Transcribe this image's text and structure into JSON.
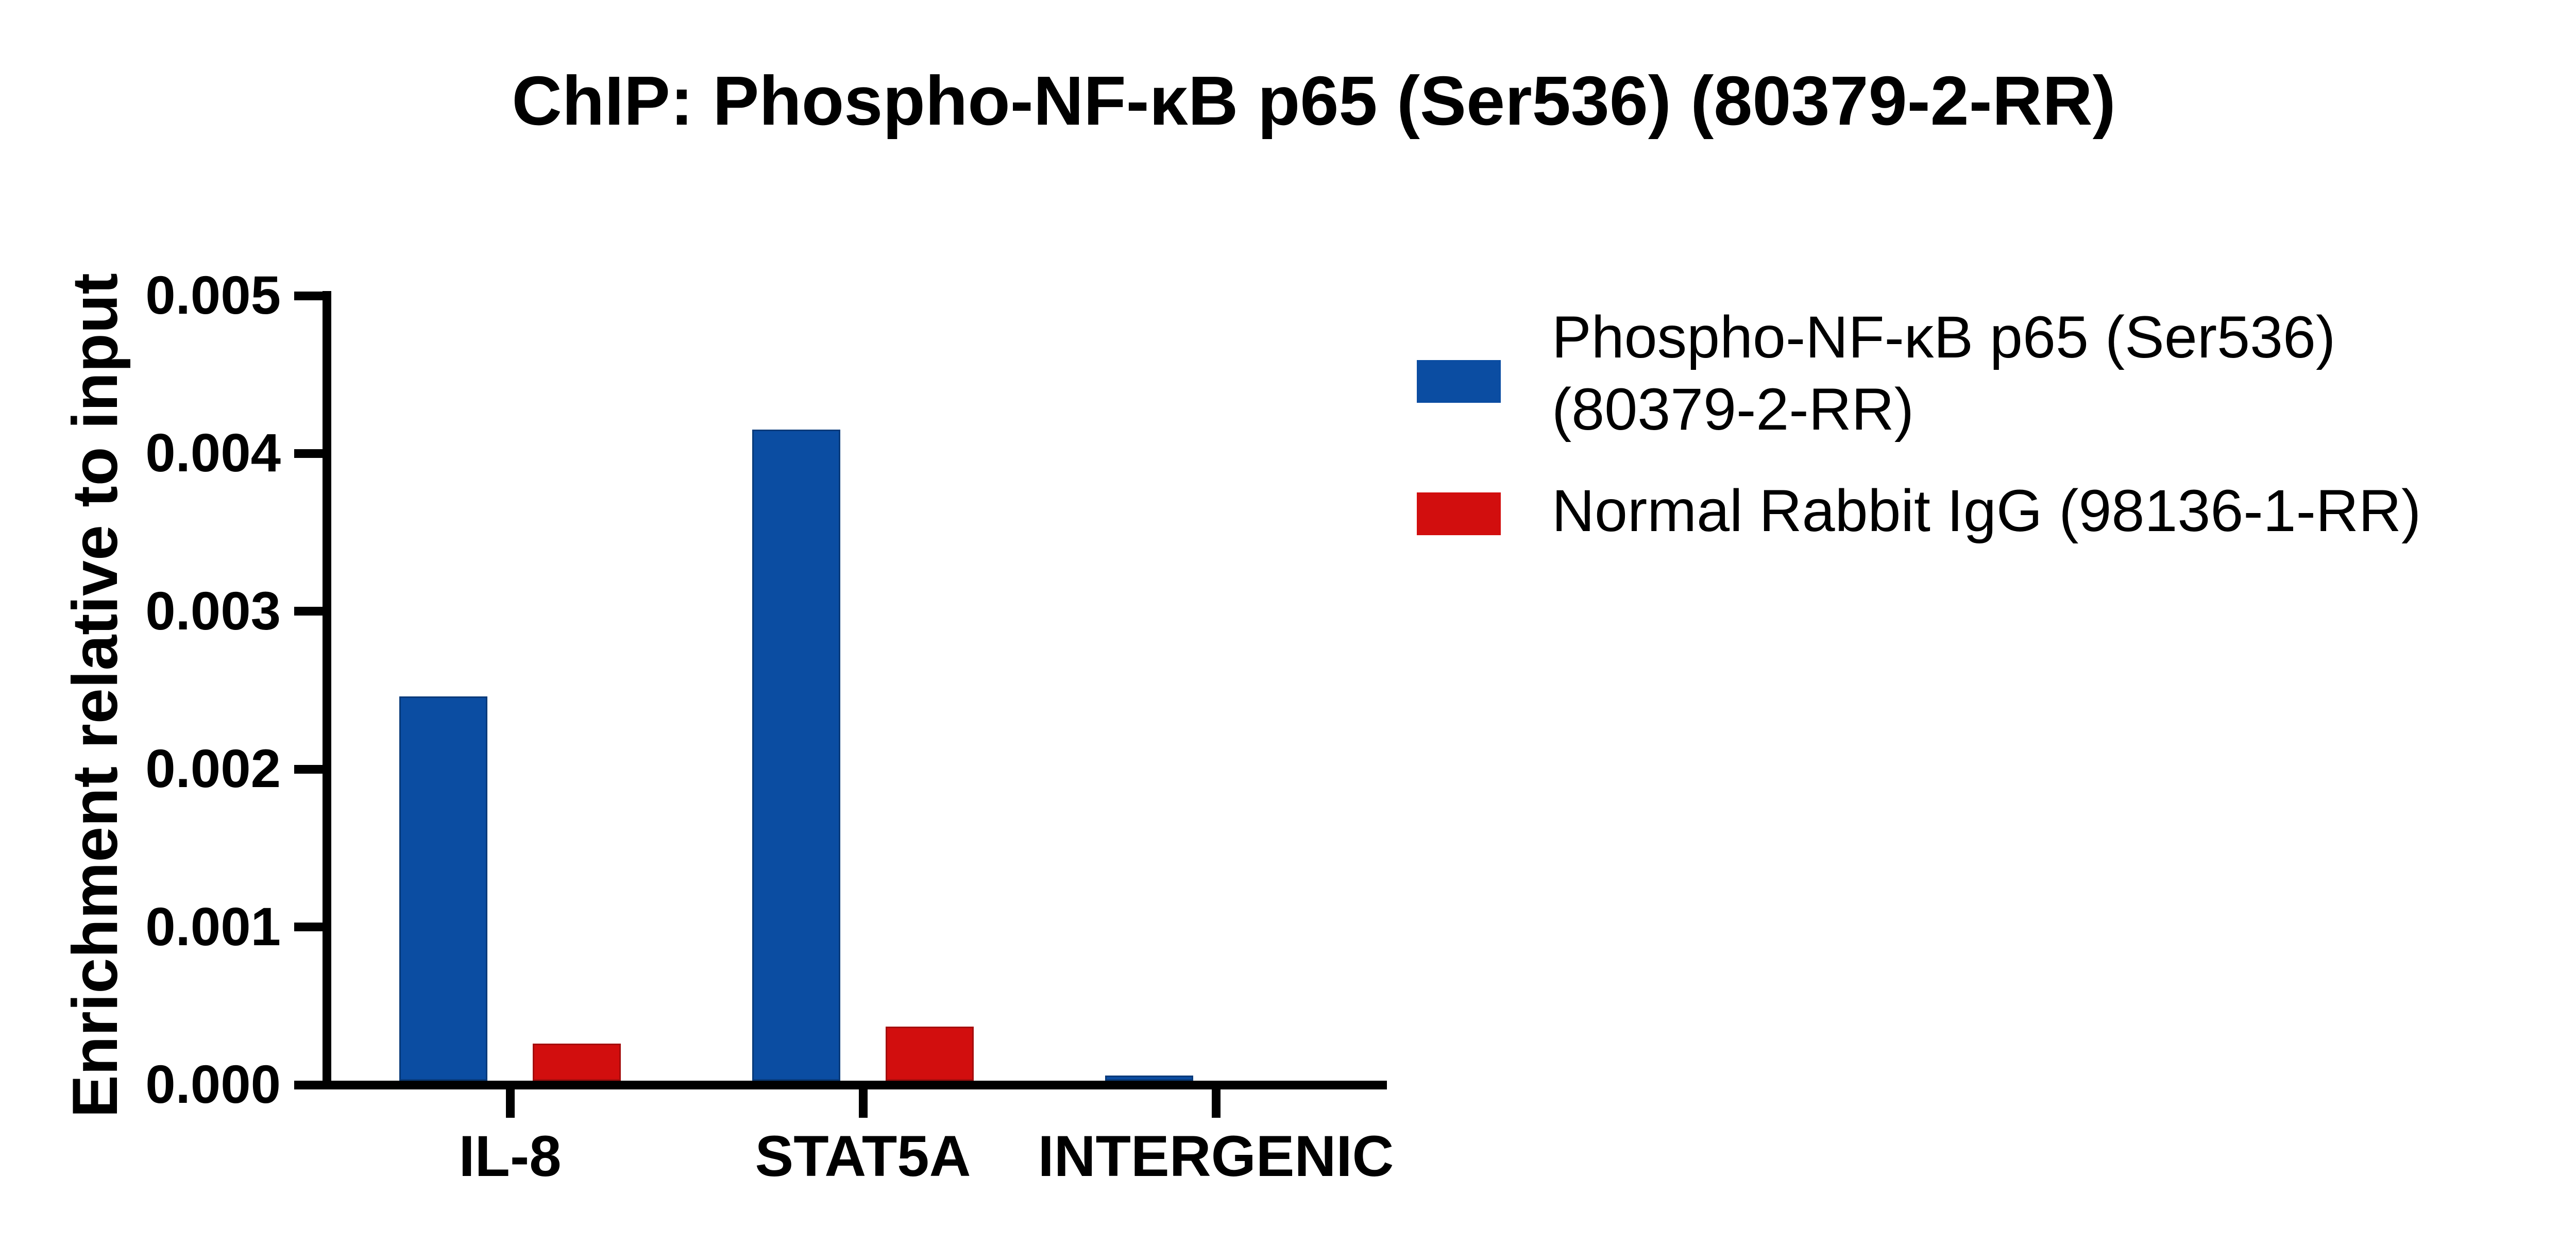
{
  "figure": {
    "background": "#ffffff",
    "text_color": "#000000",
    "axis_color": "#000000"
  },
  "chart_data": {
    "type": "bar",
    "title": "ChIP: Phospho-NF-κB p65 (Ser536) (80379-2-RR)",
    "ylabel": "Enrichment relative to input",
    "xlabel": "",
    "categories": [
      "IL-8",
      "STAT5A",
      "INTERGENIC"
    ],
    "series": [
      {
        "name": "Phospho-NF-κB p65 (Ser536) (80379-2-RR)",
        "legend_lines": [
          "Phospho-NF-κB p65 (Ser536)",
          "(80379-2-RR)"
        ],
        "color": "#0B4DA2",
        "border_color": "#083A7A",
        "values": [
          0.00246,
          0.00415,
          6e-05
        ]
      },
      {
        "name": "Normal Rabbit IgG (98136-1-RR)",
        "legend_lines": [
          "Normal Rabbit IgG (98136-1-RR)"
        ],
        "color": "#D20E0E",
        "border_color": "#A50D0D",
        "values": [
          0.00026,
          0.00037,
          0
        ]
      }
    ],
    "ylim": [
      0,
      0.005
    ],
    "yticks": [
      0,
      0.001,
      0.002,
      0.003,
      0.004,
      0.005
    ],
    "ytick_labels": [
      "0.000",
      "0.001",
      "0.002",
      "0.003",
      "0.004",
      "0.005"
    ],
    "grid": false,
    "legend_position": "right"
  }
}
